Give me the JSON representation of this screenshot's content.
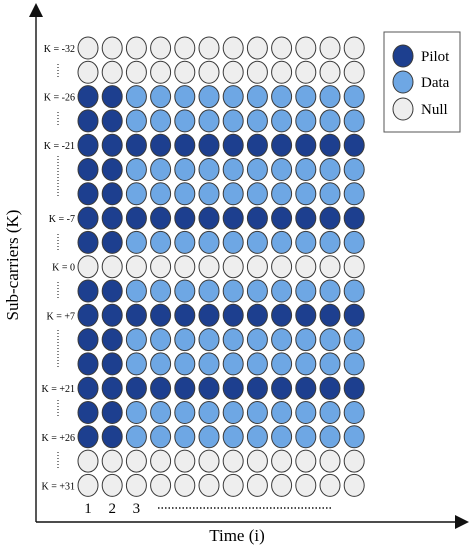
{
  "axes": {
    "y_title": "Sub-carriers (K)",
    "x_title": "Time (i)"
  },
  "x_ticks": [
    "1",
    "2",
    "3"
  ],
  "row_labels": [
    "K = -32",
    "K = -26",
    "K = -21",
    "K = -7",
    "K = 0",
    "K = +7",
    "K = +21",
    "K = +26",
    "K = +31"
  ],
  "legend": {
    "items": [
      {
        "label": "Pilot",
        "color": "#1d3f8f"
      },
      {
        "label": "Data",
        "color": "#6ea7e4"
      },
      {
        "label": "Null",
        "color": "#eeeeee"
      }
    ]
  },
  "colors": {
    "P": "#1d3f8f",
    "D": "#6ea7e4",
    "N": "#eeeeee",
    "stroke": "#3a3a3a"
  },
  "grid": {
    "columns": 12,
    "rows": [
      "NNNNNNNNNNNN",
      "NNNNNNNNNNNN",
      "PPDDDDDDDDDD",
      "PPDDDDDDDDDD",
      "PPPPPPPPPPPP",
      "PPDDDDDDDDDD",
      "PPDDDDDDDDDD",
      "PPPPPPPPPPPP",
      "PPDDDDDDDDDD",
      "NNNNNNNNNNNN",
      "PPDDDDDDDDDD",
      "PPPPPPPPPPPP",
      "PPDDDDDDDDDD",
      "PPDDDDDDDDDD",
      "PPPPPPPPPPPP",
      "PPDDDDDDDDDD",
      "PPDDDDDDDDDD",
      "NNNNNNNNNNNN",
      "NNNNNNNNNNNN"
    ]
  }
}
